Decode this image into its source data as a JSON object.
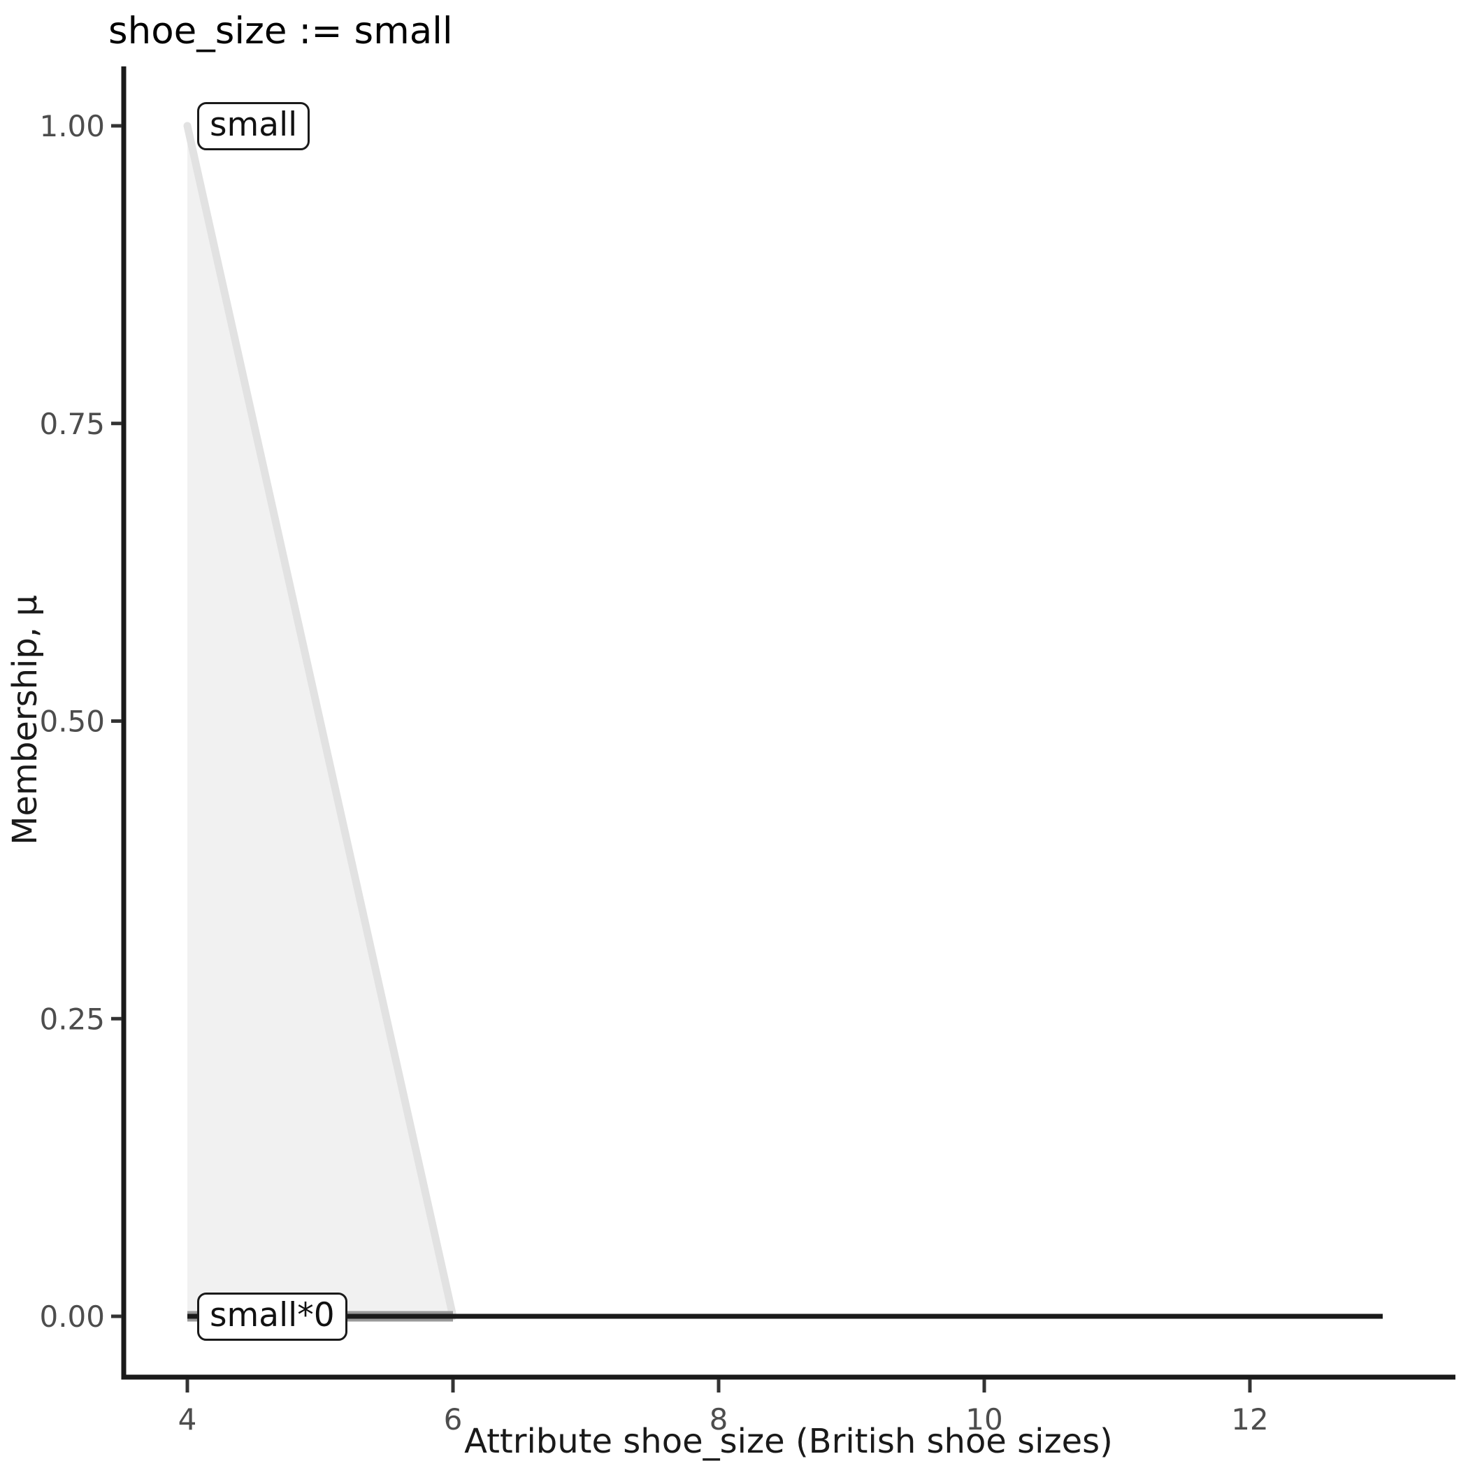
{
  "title": "shoe_size := small",
  "axes": {
    "x_title": "Attribute shoe_size (British shoe sizes)",
    "y_title": "Membership, μ",
    "x_ticks": [
      {
        "value": 4,
        "label": "4"
      },
      {
        "value": 6,
        "label": "6"
      },
      {
        "value": 8,
        "label": "8"
      },
      {
        "value": 10,
        "label": "10"
      },
      {
        "value": 12,
        "label": "12"
      }
    ],
    "y_ticks": [
      {
        "value": 0.0,
        "label": "0.00"
      },
      {
        "value": 0.25,
        "label": "0.25"
      },
      {
        "value": 0.5,
        "label": "0.50"
      },
      {
        "value": 0.75,
        "label": "0.75"
      },
      {
        "value": 1.0,
        "label": "1.00"
      }
    ]
  },
  "colors": {
    "axis_line": "#1a1a1a",
    "tick_mark": "#333333",
    "tick_label": "#4d4d4d",
    "axis_title": "#1a1a1a",
    "title": "#000000"
  },
  "chart_data": {
    "type": "area",
    "title": "shoe_size := small",
    "xlabel": "Attribute shoe_size (British shoe sizes)",
    "ylabel": "Membership, μ",
    "xlim": [
      3.5,
      13.55
    ],
    "ylim": [
      -0.05,
      1.05
    ],
    "x_tick_values": [
      4,
      6,
      8,
      10,
      12
    ],
    "y_tick_values": [
      0.0,
      0.25,
      0.5,
      0.75,
      1.0
    ],
    "grid": false,
    "legend": false,
    "series": [
      {
        "name": "small",
        "type": "area",
        "x": [
          4,
          6
        ],
        "y": [
          1,
          0
        ],
        "baseline": 0,
        "fill": "#f1f1f1",
        "stroke": "#e2e2e2",
        "stroke_width": 11
      },
      {
        "name": "small-support-zero",
        "type": "line",
        "x": [
          4,
          6
        ],
        "y": [
          0,
          0
        ],
        "stroke": "#999999",
        "stroke_width": 15
      },
      {
        "name": "small*0",
        "type": "line",
        "x": [
          4,
          13
        ],
        "y": [
          0,
          0
        ],
        "stroke": "#1a1a1a",
        "stroke_width": 7
      }
    ],
    "annotations": [
      {
        "text": "small",
        "x": 4,
        "y": 1.0
      },
      {
        "text": "small*0",
        "x": 4,
        "y": 0.0
      }
    ]
  }
}
